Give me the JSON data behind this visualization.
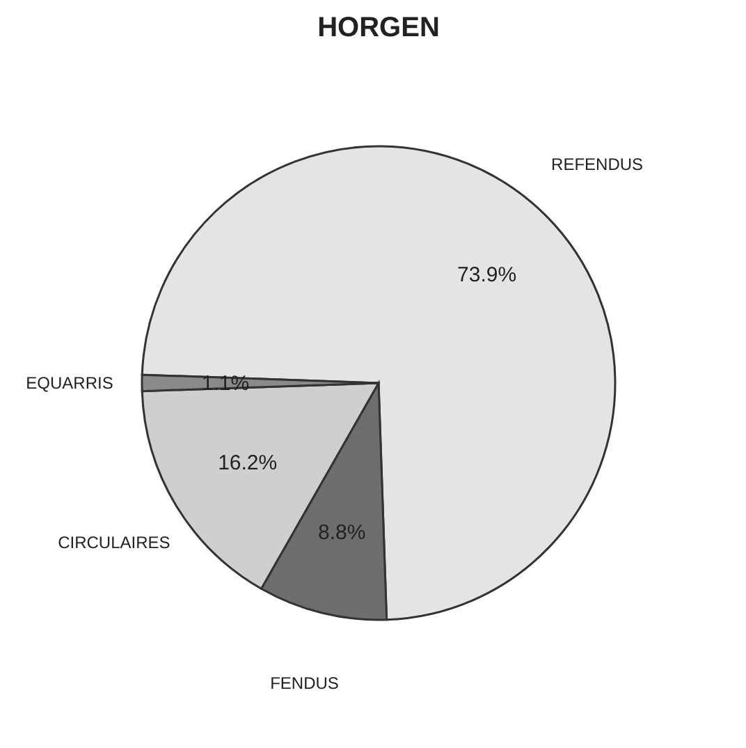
{
  "chart_data": {
    "type": "pie",
    "title": "HORGEN",
    "categories": [
      "REFENDUS",
      "FENDUS",
      "CIRCULAIRES",
      "EQUARRIS"
    ],
    "values": [
      73.9,
      8.8,
      16.2,
      1.1
    ],
    "value_labels": [
      "73.9%",
      "8.8%",
      "16.2%",
      "1.1%"
    ],
    "colors": [
      "#e4e4e4",
      "#6e6e6e",
      "#cfcfcf",
      "#8a8a8a"
    ],
    "legend": false
  }
}
